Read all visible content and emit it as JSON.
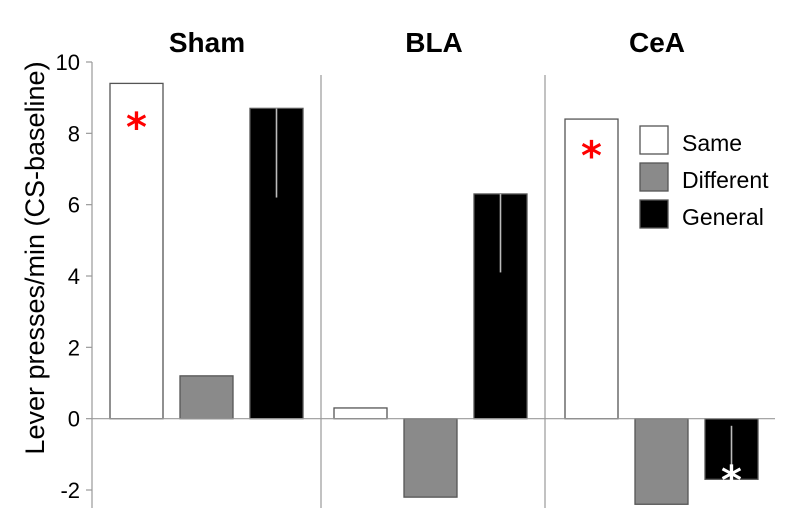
{
  "chart_data": {
    "type": "bar",
    "title": "",
    "ylabel": "Lever presses/min (CS-baseline)",
    "xlabel": "",
    "ylim": [
      -2,
      10
    ],
    "yticks": [
      -2,
      0,
      2,
      4,
      6,
      8,
      10
    ],
    "categories": [
      "Sham",
      "BLA",
      "CeA"
    ],
    "series": [
      {
        "name": "Same",
        "values": [
          9.4,
          0.3,
          8.4
        ],
        "color": "#ffffff"
      },
      {
        "name": "Different",
        "values": [
          1.2,
          -2.2,
          -2.4
        ],
        "color": "#8a8a8a"
      },
      {
        "name": "General",
        "values": [
          8.7,
          6.3,
          -1.7
        ],
        "color": "#000000"
      }
    ],
    "error_low": [
      [
        null,
        null,
        null
      ],
      [
        null,
        null,
        null
      ],
      [
        6.2,
        4.1,
        -0.2
      ]
    ],
    "annotations": [
      {
        "text": "*",
        "category": "Sham",
        "series": "Same",
        "y": 8.4,
        "color": "#ff0000"
      },
      {
        "text": "*",
        "category": "CeA",
        "series": "Same",
        "y": 7.6,
        "color": "#ff0000"
      },
      {
        "text": "*",
        "category": "CeA",
        "series": "General",
        "y": -1.5,
        "color": "#ffffff"
      }
    ],
    "legend_position": "right",
    "grid": false
  }
}
